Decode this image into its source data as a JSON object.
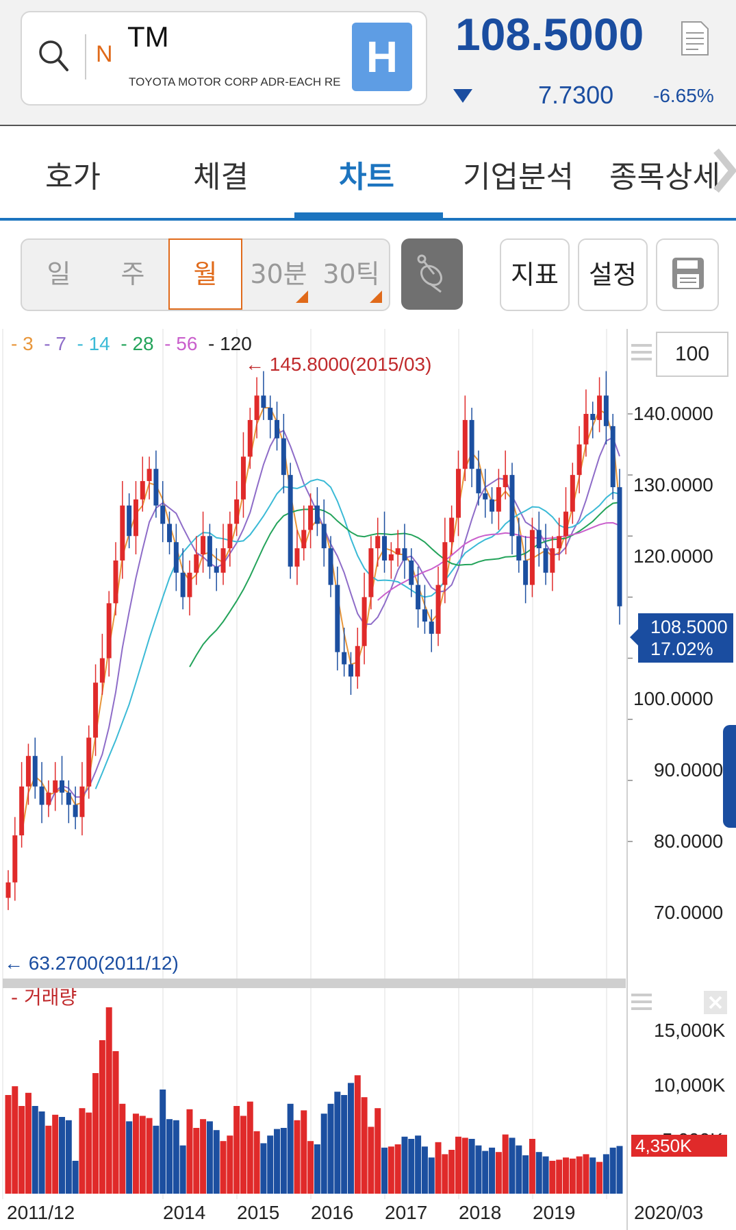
{
  "header": {
    "symbol": "TM",
    "exchange_badge": "N",
    "company": "TOYOTA MOTOR CORP ADR-EACH RE",
    "h_badge": "H",
    "price": "108.5000",
    "change": "7.7300",
    "change_pct": "-6.65%",
    "direction": "down"
  },
  "tabs": [
    "호가",
    "체결",
    "차트",
    "기업분석",
    "종목상세"
  ],
  "active_tab": "차트",
  "period_tabs": [
    "일",
    "주",
    "월",
    "30분",
    "30틱"
  ],
  "active_period": "월",
  "toolbar": {
    "indicator": "지표",
    "settings": "설정"
  },
  "legend": [
    {
      "label": "3",
      "color": "#e8963a"
    },
    {
      "label": "7",
      "color": "#8e6cc8"
    },
    {
      "label": "14",
      "color": "#3bbad6"
    },
    {
      "label": "28",
      "color": "#23a35a"
    },
    {
      "label": "56",
      "color": "#c95fcc"
    },
    {
      "label": "120",
      "color": "#222222"
    }
  ],
  "count_box": "100",
  "high_annotation": "145.8000(2015/03)",
  "low_annotation": "63.2700(2011/12)",
  "current_tag": {
    "price": "108.5000",
    "pct": "17.02%"
  },
  "price_axis": [
    "140.0000",
    "130.0000",
    "120.0000",
    "100.0000",
    "90.0000",
    "80.0000",
    "70.0000"
  ],
  "volume": {
    "label": "거래량",
    "axis": [
      "15,000K",
      "10,000K",
      "5,000K"
    ],
    "current": "4,350K"
  },
  "x_axis": [
    "2011/12",
    "2014",
    "2015",
    "2016",
    "2017",
    "2018",
    "2019",
    "2020/03"
  ],
  "colors": {
    "up": "#e02a2a",
    "down": "#1c4fa0",
    "accent": "#1c74bf"
  },
  "chart_data": {
    "type": "candlestick",
    "ylim": [
      60,
      150
    ],
    "volume_ylim": [
      0,
      17000
    ],
    "x_start": "2011/12",
    "x_end": "2020/03",
    "close": [
      63.3,
      71,
      79,
      84,
      79,
      76,
      78,
      80,
      78,
      76,
      74,
      79,
      87,
      96,
      100,
      109,
      116,
      125,
      120,
      126,
      129,
      131,
      125,
      122,
      119,
      114,
      110,
      114,
      117,
      120,
      115,
      114,
      118,
      122,
      126,
      133,
      139,
      143,
      141,
      139,
      136,
      130,
      115,
      118,
      121,
      125,
      122,
      118,
      112,
      101,
      99,
      97,
      102,
      110,
      118,
      120,
      116,
      117,
      118,
      116,
      112,
      108,
      106,
      104,
      112,
      119,
      123,
      131,
      139,
      131,
      127,
      126,
      124,
      128,
      130,
      120,
      116,
      112,
      121,
      118,
      114,
      118,
      120,
      124,
      130,
      135,
      140,
      139,
      143,
      138,
      128,
      108.5
    ],
    "volume": [
      9000,
      9800,
      8000,
      9200,
      8000,
      7500,
      6200,
      7200,
      7000,
      6700,
      3000,
      7800,
      7400,
      11000,
      14000,
      17000,
      13000,
      8200,
      6600,
      7300,
      7100,
      6900,
      6200,
      9500,
      6800,
      6700,
      4400,
      7700,
      6000,
      6800,
      6600,
      5800,
      4800,
      5300,
      8000,
      7100,
      8400,
      5700,
      4600,
      5300,
      5900,
      6000,
      8200,
      6700,
      7600,
      4800,
      4500,
      7300,
      8200,
      9300,
      9000,
      10100,
      10800,
      8800,
      6100,
      7800,
      4200,
      4300,
      4500,
      5200,
      5000,
      5300,
      4300,
      3300,
      4700,
      3600,
      4000,
      5200,
      5100,
      5000,
      4400,
      3900,
      4200,
      3800,
      5400,
      5100,
      4400,
      3500,
      5000,
      3800,
      3400,
      3000,
      3100,
      3300,
      3200,
      3400,
      3600,
      3300,
      2900,
      3600,
      4200,
      4350
    ]
  }
}
